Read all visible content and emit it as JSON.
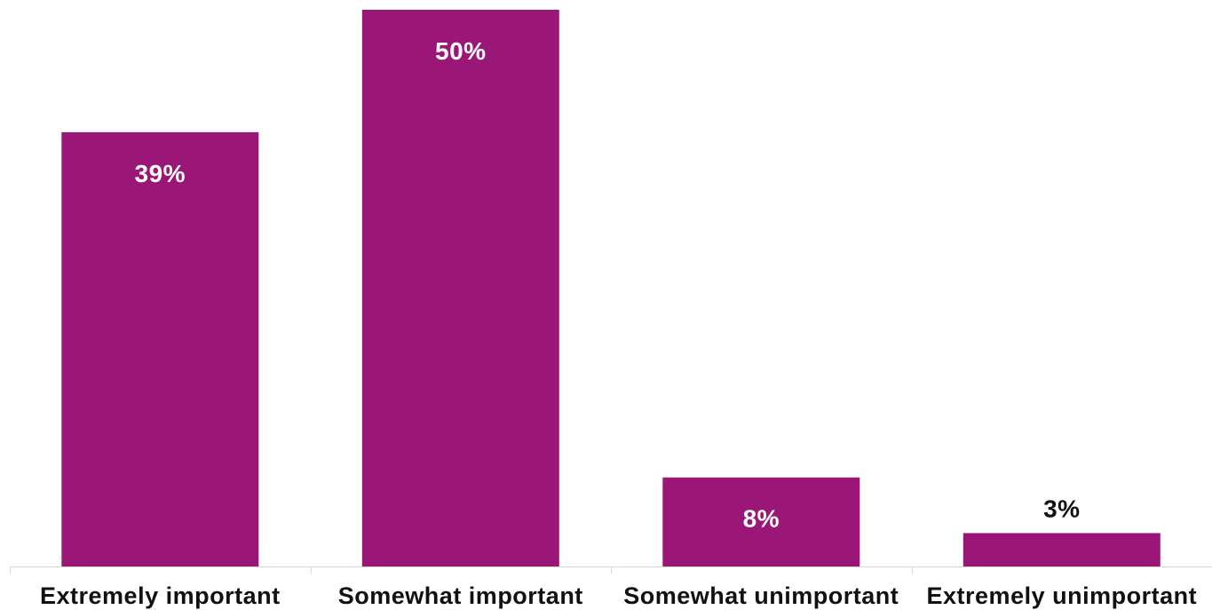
{
  "chart_data": {
    "type": "bar",
    "categories": [
      "Extremely important",
      "Somewhat important",
      "Somewhat unimportant",
      "Extremely unimportant"
    ],
    "values": [
      39,
      50,
      8,
      3
    ],
    "data_labels": [
      "39%",
      "50%",
      "8%",
      "3%"
    ],
    "title": "",
    "xlabel": "",
    "ylabel": "",
    "ylim": [
      0,
      50
    ],
    "grid": false,
    "legend": "none",
    "bar_color": "#9b1777",
    "label_color_inside": "#ffffff",
    "label_color_outside": "#111111",
    "axis_color": "#d9d9d9"
  }
}
